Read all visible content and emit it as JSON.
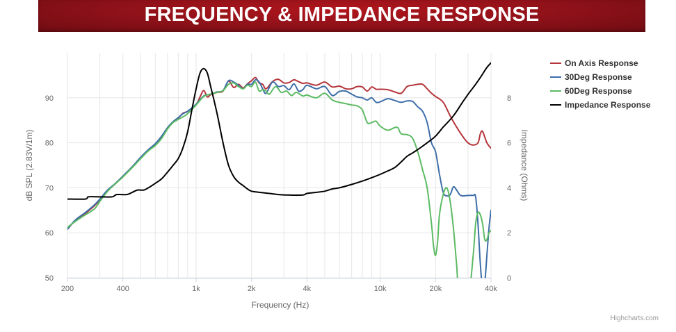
{
  "banner": {
    "title": "FREQUENCY & IMPEDANCE RESPONSE"
  },
  "credit": "Highcharts.com",
  "colors": {
    "on_axis": "#b5343a",
    "deg30": "#3e6ea8",
    "deg60": "#5cba63",
    "impedance": "#000000",
    "banner": "#9c141c",
    "grid": "#e6e6e6",
    "axis_text": "#666666"
  },
  "chart_data": {
    "type": "line",
    "x_scale": "log",
    "grid": true,
    "legend_position": "top-right",
    "xlabel": "Frequency (Hz)",
    "ylabel": "dB SPL (2.83V/1m)",
    "y2label": "Impedance (Ohms)",
    "xlim": [
      200,
      40000
    ],
    "ylim": [
      50,
      100
    ],
    "y2lim": [
      0,
      10
    ],
    "x_ticks": [
      200,
      400,
      1000,
      2000,
      4000,
      10000,
      20000,
      40000
    ],
    "x_tick_labels": [
      "200",
      "400",
      "1k",
      "2k",
      "4k",
      "10k",
      "20k",
      "40k"
    ],
    "y_ticks": [
      50,
      60,
      70,
      80,
      90
    ],
    "y_tick_labels": [
      "50",
      "60",
      "70",
      "80",
      "90"
    ],
    "y2_ticks": [
      0,
      2,
      4,
      6,
      8
    ],
    "y2_tick_labels": [
      "0",
      "2",
      "4",
      "6",
      "8"
    ],
    "series": [
      {
        "name": "On Axis Response",
        "axis": "left",
        "color": "#b5343a",
        "points": [
          [
            200,
            60.8
          ],
          [
            220,
            62.7
          ],
          [
            250,
            64.3
          ],
          [
            280,
            66
          ],
          [
            300,
            67.4
          ],
          [
            330,
            69.4
          ],
          [
            360,
            70.7
          ],
          [
            400,
            72.5
          ],
          [
            450,
            74.6
          ],
          [
            500,
            76.7
          ],
          [
            550,
            78.4
          ],
          [
            600,
            79.7
          ],
          [
            650,
            81.4
          ],
          [
            700,
            83.3
          ],
          [
            750,
            84.6
          ],
          [
            800,
            85.5
          ],
          [
            850,
            86.6
          ],
          [
            900,
            87
          ],
          [
            1000,
            88.5
          ],
          [
            1050,
            90.2
          ],
          [
            1100,
            91.6
          ],
          [
            1150,
            90.2
          ],
          [
            1200,
            90.7
          ],
          [
            1300,
            91.2
          ],
          [
            1400,
            91.5
          ],
          [
            1500,
            93.7
          ],
          [
            1600,
            92.3
          ],
          [
            1700,
            93
          ],
          [
            1800,
            92.2
          ],
          [
            1900,
            93.1
          ],
          [
            2000,
            93.8
          ],
          [
            2100,
            94.5
          ],
          [
            2200,
            93.3
          ],
          [
            2300,
            93
          ],
          [
            2400,
            92
          ],
          [
            2600,
            93.6
          ],
          [
            2800,
            94.1
          ],
          [
            3000,
            93.3
          ],
          [
            3200,
            93.4
          ],
          [
            3400,
            94
          ],
          [
            3600,
            93.6
          ],
          [
            3800,
            93.2
          ],
          [
            4000,
            93.3
          ],
          [
            4500,
            92.8
          ],
          [
            5000,
            93.5
          ],
          [
            5500,
            92.4
          ],
          [
            6000,
            92.6
          ],
          [
            6500,
            92
          ],
          [
            7000,
            92
          ],
          [
            7500,
            92.5
          ],
          [
            8000,
            92.4
          ],
          [
            8500,
            91.5
          ],
          [
            9000,
            92.4
          ],
          [
            9500,
            91.9
          ],
          [
            10000,
            91.9
          ],
          [
            11000,
            91.8
          ],
          [
            12000,
            91.3
          ],
          [
            13000,
            91
          ],
          [
            14000,
            92.5
          ],
          [
            15000,
            92.8
          ],
          [
            16000,
            93
          ],
          [
            17000,
            93
          ],
          [
            18000,
            92
          ],
          [
            19000,
            91
          ],
          [
            20000,
            90.3
          ],
          [
            22000,
            89
          ],
          [
            24000,
            86
          ],
          [
            26000,
            83.5
          ],
          [
            28000,
            81.5
          ],
          [
            30000,
            80
          ],
          [
            32000,
            79.5
          ],
          [
            34000,
            80
          ],
          [
            35000,
            82
          ],
          [
            36000,
            82.5
          ],
          [
            38000,
            80
          ],
          [
            40000,
            78.8
          ]
        ]
      },
      {
        "name": "30Deg Response",
        "axis": "left",
        "color": "#3e6ea8",
        "points": [
          [
            200,
            60.8
          ],
          [
            220,
            62.8
          ],
          [
            250,
            64.5
          ],
          [
            280,
            66.2
          ],
          [
            300,
            67.5
          ],
          [
            330,
            69.5
          ],
          [
            360,
            70.8
          ],
          [
            400,
            72.6
          ],
          [
            450,
            74.7
          ],
          [
            500,
            76.8
          ],
          [
            550,
            78.5
          ],
          [
            600,
            79.8
          ],
          [
            650,
            81.5
          ],
          [
            700,
            83.4
          ],
          [
            750,
            84.7
          ],
          [
            800,
            85.6
          ],
          [
            850,
            86.5
          ],
          [
            900,
            87
          ],
          [
            1000,
            88.6
          ],
          [
            1100,
            90.4
          ],
          [
            1200,
            90.8
          ],
          [
            1300,
            91.3
          ],
          [
            1400,
            91.6
          ],
          [
            1500,
            93.8
          ],
          [
            1600,
            93.5
          ],
          [
            1700,
            92.8
          ],
          [
            1800,
            92
          ],
          [
            1900,
            93
          ],
          [
            2000,
            93
          ],
          [
            2100,
            94
          ],
          [
            2200,
            93.5
          ],
          [
            2300,
            92
          ],
          [
            2400,
            91
          ],
          [
            2600,
            93.5
          ],
          [
            2800,
            92.5
          ],
          [
            3000,
            92.7
          ],
          [
            3200,
            91.8
          ],
          [
            3400,
            93.1
          ],
          [
            3600,
            91.5
          ],
          [
            3800,
            91.8
          ],
          [
            4000,
            92.8
          ],
          [
            4500,
            92
          ],
          [
            5000,
            92.5
          ],
          [
            5500,
            90.5
          ],
          [
            6000,
            91.4
          ],
          [
            6500,
            91.5
          ],
          [
            7000,
            90.8
          ],
          [
            7500,
            90.2
          ],
          [
            8000,
            90
          ],
          [
            8500,
            89.5
          ],
          [
            9000,
            90
          ],
          [
            9500,
            89
          ],
          [
            10000,
            89.1
          ],
          [
            11000,
            89.8
          ],
          [
            12000,
            89.4
          ],
          [
            13000,
            89
          ],
          [
            14000,
            89.3
          ],
          [
            15000,
            89.2
          ],
          [
            16000,
            88
          ],
          [
            17000,
            87
          ],
          [
            18000,
            84.5
          ],
          [
            19000,
            80
          ],
          [
            20000,
            78
          ],
          [
            21000,
            73
          ],
          [
            22000,
            69
          ],
          [
            23000,
            68.2
          ],
          [
            24000,
            68.5
          ],
          [
            25000,
            70.2
          ],
          [
            26000,
            69.5
          ],
          [
            27000,
            68.5
          ],
          [
            28000,
            68.2
          ],
          [
            30000,
            68.3
          ],
          [
            32000,
            68.3
          ],
          [
            33000,
            68
          ],
          [
            34000,
            62
          ],
          [
            35000,
            53
          ],
          [
            36000,
            48
          ],
          [
            37000,
            49
          ],
          [
            38000,
            55
          ],
          [
            39000,
            61
          ],
          [
            40000,
            65
          ]
        ]
      },
      {
        "name": "60Deg Response",
        "axis": "left",
        "color": "#5cba63",
        "points": [
          [
            200,
            61.2
          ],
          [
            220,
            62.5
          ],
          [
            250,
            64
          ],
          [
            280,
            65.3
          ],
          [
            300,
            67
          ],
          [
            330,
            69.2
          ],
          [
            360,
            70.7
          ],
          [
            400,
            72.4
          ],
          [
            450,
            74.5
          ],
          [
            500,
            76.5
          ],
          [
            550,
            78.2
          ],
          [
            600,
            79.4
          ],
          [
            650,
            81
          ],
          [
            700,
            83.1
          ],
          [
            750,
            84.5
          ],
          [
            800,
            85.2
          ],
          [
            850,
            85.8
          ],
          [
            900,
            86.5
          ],
          [
            1000,
            88.4
          ],
          [
            1100,
            90.3
          ],
          [
            1200,
            90.8
          ],
          [
            1300,
            91.2
          ],
          [
            1400,
            91.6
          ],
          [
            1500,
            93
          ],
          [
            1600,
            93.3
          ],
          [
            1700,
            92.5
          ],
          [
            1800,
            92
          ],
          [
            1900,
            92.8
          ],
          [
            2000,
            92.5
          ],
          [
            2100,
            93.5
          ],
          [
            2200,
            91.5
          ],
          [
            2300,
            91.8
          ],
          [
            2400,
            91.5
          ],
          [
            2500,
            90.8
          ],
          [
            2700,
            92.5
          ],
          [
            2900,
            91.2
          ],
          [
            3100,
            91.5
          ],
          [
            3300,
            90.5
          ],
          [
            3500,
            91.2
          ],
          [
            3800,
            90.4
          ],
          [
            4000,
            90.6
          ],
          [
            4500,
            90
          ],
          [
            5000,
            91
          ],
          [
            5500,
            89.5
          ],
          [
            6000,
            89
          ],
          [
            6500,
            88.7
          ],
          [
            7000,
            88.4
          ],
          [
            7500,
            88.2
          ],
          [
            8000,
            87.3
          ],
          [
            8500,
            84.5
          ],
          [
            9000,
            84.5
          ],
          [
            9500,
            84.8
          ],
          [
            10000,
            83.7
          ],
          [
            11000,
            82.8
          ],
          [
            12000,
            83.4
          ],
          [
            12500,
            83.3
          ],
          [
            13000,
            82
          ],
          [
            14000,
            81.8
          ],
          [
            15000,
            81
          ],
          [
            16000,
            78
          ],
          [
            17000,
            74
          ],
          [
            18000,
            70
          ],
          [
            19000,
            62
          ],
          [
            19500,
            57
          ],
          [
            20000,
            55
          ],
          [
            20500,
            58
          ],
          [
            21000,
            64
          ],
          [
            22000,
            68.5
          ],
          [
            23000,
            70
          ],
          [
            24000,
            67
          ],
          [
            25000,
            61
          ],
          [
            26000,
            53
          ],
          [
            27000,
            45
          ],
          [
            30000,
            45
          ],
          [
            32000,
            55
          ],
          [
            33000,
            62
          ],
          [
            34000,
            64.5
          ],
          [
            35000,
            64
          ],
          [
            36000,
            62
          ],
          [
            37000,
            58.5
          ],
          [
            38000,
            58.5
          ],
          [
            39000,
            60
          ],
          [
            40000,
            60.5
          ]
        ]
      },
      {
        "name": "Impedance Response",
        "axis": "right",
        "color": "#000000",
        "points": [
          [
            200,
            3.5
          ],
          [
            250,
            3.5
          ],
          [
            260,
            3.6
          ],
          [
            300,
            3.6
          ],
          [
            350,
            3.6
          ],
          [
            370,
            3.7
          ],
          [
            420,
            3.7
          ],
          [
            450,
            3.8
          ],
          [
            480,
            3.9
          ],
          [
            520,
            3.9
          ],
          [
            550,
            4
          ],
          [
            600,
            4.2
          ],
          [
            650,
            4.4
          ],
          [
            700,
            4.7
          ],
          [
            750,
            5
          ],
          [
            800,
            5.3
          ],
          [
            850,
            5.8
          ],
          [
            900,
            6.5
          ],
          [
            950,
            7.5
          ],
          [
            1000,
            8.4
          ],
          [
            1050,
            9.1
          ],
          [
            1100,
            9.3
          ],
          [
            1150,
            9.1
          ],
          [
            1200,
            8.5
          ],
          [
            1300,
            7.3
          ],
          [
            1400,
            6
          ],
          [
            1500,
            5
          ],
          [
            1600,
            4.5
          ],
          [
            1700,
            4.25
          ],
          [
            1800,
            4.1
          ],
          [
            1900,
            3.95
          ],
          [
            2000,
            3.85
          ],
          [
            2200,
            3.8
          ],
          [
            2500,
            3.75
          ],
          [
            2800,
            3.7
          ],
          [
            3200,
            3.68
          ],
          [
            3800,
            3.68
          ],
          [
            4000,
            3.75
          ],
          [
            4500,
            3.8
          ],
          [
            5000,
            3.85
          ],
          [
            5500,
            3.95
          ],
          [
            6000,
            4
          ],
          [
            7000,
            4.15
          ],
          [
            8000,
            4.3
          ],
          [
            9000,
            4.45
          ],
          [
            10000,
            4.6
          ],
          [
            11000,
            4.75
          ],
          [
            12000,
            4.9
          ],
          [
            13000,
            5.15
          ],
          [
            14000,
            5.4
          ],
          [
            15000,
            5.55
          ],
          [
            16000,
            5.7
          ],
          [
            17000,
            5.85
          ],
          [
            18000,
            6
          ],
          [
            20000,
            6.3
          ],
          [
            22000,
            6.7
          ],
          [
            25000,
            7.2
          ],
          [
            28000,
            7.8
          ],
          [
            30000,
            8.15
          ],
          [
            33000,
            8.6
          ],
          [
            35000,
            8.9
          ],
          [
            38000,
            9.35
          ],
          [
            40000,
            9.55
          ]
        ]
      }
    ]
  }
}
